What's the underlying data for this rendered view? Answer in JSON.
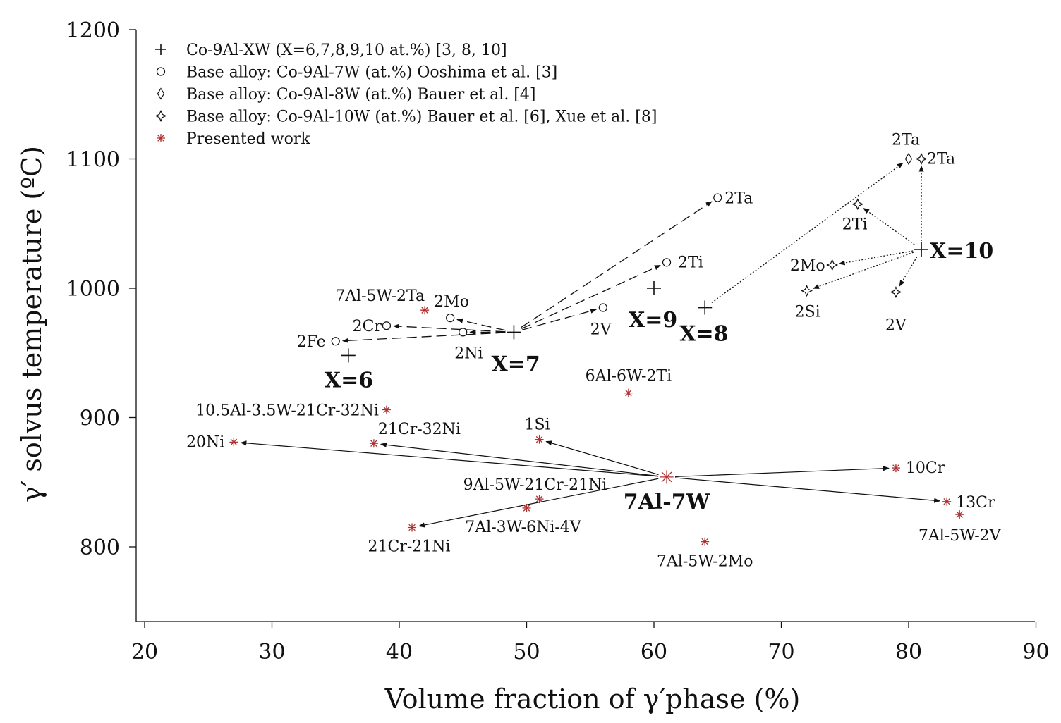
{
  "chart_data": {
    "type": "scatter",
    "xlabel": "Volume fraction of γ′phase (%)",
    "ylabel": "γ′ solvus temperature (ºC)",
    "xlim": [
      19.4,
      90
    ],
    "ylim": [
      745,
      1200
    ],
    "xticks": [
      "20",
      "30",
      "40",
      "50",
      "60",
      "70",
      "80",
      "90"
    ],
    "yticks": [
      "800",
      "900",
      "1000",
      "1100",
      "1200"
    ],
    "grid": false,
    "legend_position": "top-left",
    "colors": {
      "black": "#111111",
      "red": "#b03030"
    },
    "legend": [
      {
        "marker": "plus",
        "label": "Co-9Al-XW (X=6,7,8,9,10 at.%) [3, 8, 10]"
      },
      {
        "marker": "circle",
        "label": "Base alloy: Co-9Al-7W (at.%) Ooshima et al. [3]"
      },
      {
        "marker": "diamond",
        "label": "Base alloy: Co-9Al-8W (at.%) Bauer et al. [4]"
      },
      {
        "marker": "star4",
        "label": "Base alloy: Co-9Al-10W (at.%) Bauer et al. [6], Xue et al. [8]"
      },
      {
        "marker": "asterisk",
        "label": "Presented work"
      }
    ],
    "series": [
      {
        "name": "Co-9Al-XW (X=6,7,8,9,10 at.%) [3, 8, 10]",
        "marker": "plus",
        "points": [
          {
            "x": 36,
            "y": 948,
            "label": "X=6"
          },
          {
            "x": 49,
            "y": 966,
            "label": "X=7"
          },
          {
            "x": 64,
            "y": 985,
            "label": "X=8"
          },
          {
            "x": 60,
            "y": 1000,
            "label": "X=9"
          },
          {
            "x": 81,
            "y": 1030,
            "label": "X=10"
          }
        ]
      },
      {
        "name": "Base alloy: Co-9Al-7W (at.%) Ooshima et al. [3]",
        "marker": "circle",
        "points": [
          {
            "x": 35,
            "y": 959,
            "label": "2Fe"
          },
          {
            "x": 39,
            "y": 971,
            "label": "2Cr"
          },
          {
            "x": 44,
            "y": 977,
            "label": "2Mo"
          },
          {
            "x": 45,
            "y": 966,
            "label": "2Ni"
          },
          {
            "x": 56,
            "y": 985,
            "label": "2V"
          },
          {
            "x": 61,
            "y": 1020,
            "label": "2Ti"
          },
          {
            "x": 65,
            "y": 1070,
            "label": "2Ta"
          }
        ]
      },
      {
        "name": "Base alloy: Co-9Al-8W (at.%) Bauer et al. [4]",
        "marker": "diamond",
        "points": [
          {
            "x": 80,
            "y": 1100,
            "label": "2Ta"
          }
        ]
      },
      {
        "name": "Base alloy: Co-9Al-10W (at.%) Bauer et al. [6], Xue et al. [8]",
        "marker": "star4",
        "points": [
          {
            "x": 81,
            "y": 1100,
            "label": "2Ta"
          },
          {
            "x": 76,
            "y": 1065,
            "label": "2Ti"
          },
          {
            "x": 74,
            "y": 1018,
            "label": "2Mo"
          },
          {
            "x": 72,
            "y": 998,
            "label": "2Si"
          },
          {
            "x": 79,
            "y": 997,
            "label": "2V"
          }
        ]
      },
      {
        "name": "Presented work",
        "marker": "asterisk",
        "points": [
          {
            "x": 61,
            "y": 854,
            "label": "7Al-7W"
          },
          {
            "x": 42,
            "y": 983,
            "label": "7Al-5W-2Ta"
          },
          {
            "x": 58,
            "y": 919,
            "label": "6Al-6W-2Ti"
          },
          {
            "x": 39,
            "y": 906,
            "label": "10.5Al-3.5W-21Cr-32Ni"
          },
          {
            "x": 27,
            "y": 881,
            "label": "20Ni"
          },
          {
            "x": 38,
            "y": 880,
            "label": "21Cr-32Ni"
          },
          {
            "x": 51,
            "y": 883,
            "label": "1Si"
          },
          {
            "x": 51,
            "y": 837,
            "label": "9Al-5W-21Cr-21Ni"
          },
          {
            "x": 50,
            "y": 830,
            "label": "7Al-3W-6Ni-4V"
          },
          {
            "x": 41,
            "y": 815,
            "label": "21Cr-21Ni"
          },
          {
            "x": 64,
            "y": 804,
            "label": "7Al-5W-2Mo"
          },
          {
            "x": 79,
            "y": 861,
            "label": "10Cr"
          },
          {
            "x": 83,
            "y": 835,
            "label": "13Cr"
          },
          {
            "x": 84,
            "y": 825,
            "label": "7Al-5W-2V"
          }
        ]
      }
    ],
    "arrows": [
      {
        "style": "dashed",
        "from": [
          49,
          966
        ],
        "to": [
          35,
          959
        ]
      },
      {
        "style": "dashed",
        "from": [
          49,
          966
        ],
        "to": [
          39,
          971
        ]
      },
      {
        "style": "dashed",
        "from": [
          49,
          966
        ],
        "to": [
          44,
          977
        ]
      },
      {
        "style": "dashed",
        "from": [
          49,
          966
        ],
        "to": [
          45,
          966
        ]
      },
      {
        "style": "dashed",
        "from": [
          49,
          966
        ],
        "to": [
          56,
          985
        ]
      },
      {
        "style": "dashed",
        "from": [
          49,
          966
        ],
        "to": [
          61,
          1020
        ]
      },
      {
        "style": "dashed",
        "from": [
          49,
          966
        ],
        "to": [
          65,
          1070
        ]
      },
      {
        "style": "dotted",
        "from": [
          64,
          985
        ],
        "to": [
          80,
          1100
        ]
      },
      {
        "style": "dotted",
        "from": [
          81,
          1030
        ],
        "to": [
          81,
          1100
        ]
      },
      {
        "style": "dotted",
        "from": [
          81,
          1030
        ],
        "to": [
          76,
          1065
        ]
      },
      {
        "style": "dotted",
        "from": [
          81,
          1030
        ],
        "to": [
          74,
          1018
        ]
      },
      {
        "style": "dotted",
        "from": [
          81,
          1030
        ],
        "to": [
          72,
          998
        ]
      },
      {
        "style": "dotted",
        "from": [
          81,
          1030
        ],
        "to": [
          79,
          997
        ]
      },
      {
        "style": "solid",
        "from": [
          61,
          854
        ],
        "to": [
          27,
          881
        ]
      },
      {
        "style": "solid",
        "from": [
          61,
          854
        ],
        "to": [
          38,
          880
        ]
      },
      {
        "style": "solid",
        "from": [
          61,
          854
        ],
        "to": [
          51,
          883
        ]
      },
      {
        "style": "solid",
        "from": [
          61,
          854
        ],
        "to": [
          41,
          815
        ]
      },
      {
        "style": "solid",
        "from": [
          61,
          854
        ],
        "to": [
          79,
          861
        ]
      },
      {
        "style": "solid",
        "from": [
          61,
          854
        ],
        "to": [
          83,
          835
        ]
      }
    ]
  }
}
